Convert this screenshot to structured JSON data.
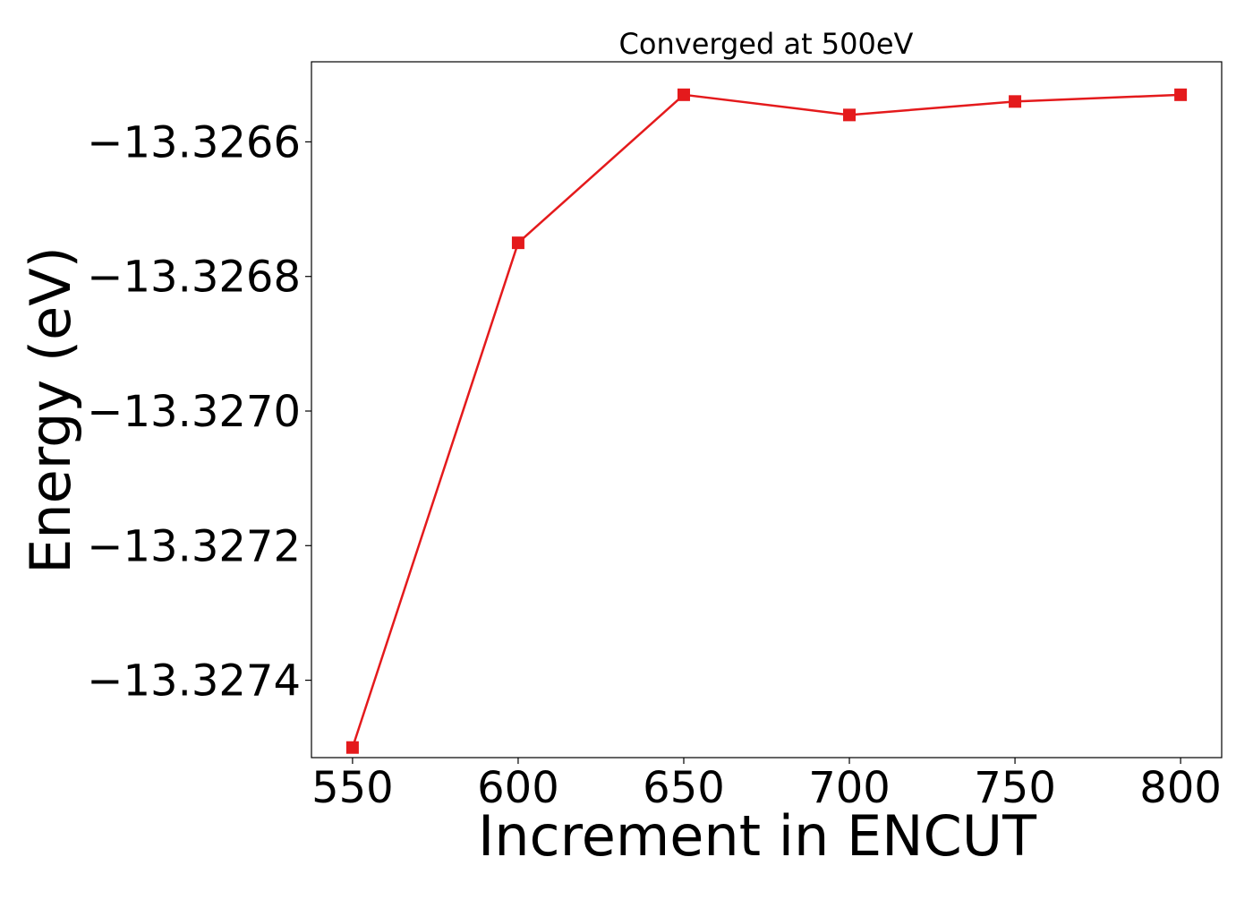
{
  "chart_data": {
    "type": "line",
    "title": "Converged at 500eV",
    "xlabel": "Increment in ENCUT",
    "ylabel": "Energy (eV)",
    "x": [
      550,
      600,
      650,
      700,
      750,
      800
    ],
    "series": [
      {
        "values": [
          -13.3275,
          -13.32675,
          -13.32653,
          -13.32656,
          -13.32654,
          -13.32653
        ],
        "color": "#e41a1c",
        "marker": "square"
      }
    ],
    "xticks": [
      550,
      600,
      650,
      700,
      750,
      800
    ],
    "xtick_labels": [
      "550",
      "600",
      "650",
      "700",
      "750",
      "800"
    ],
    "yticks": [
      -13.3274,
      -13.3272,
      -13.327,
      -13.3268,
      -13.3266
    ],
    "ytick_labels": [
      "−13.3274",
      "−13.3272",
      "−13.3270",
      "−13.3268",
      "−13.3266"
    ],
    "xlim": [
      537.6,
      812.4
    ],
    "ylim": [
      -13.327515,
      -13.326481
    ],
    "grid": false,
    "legend": "none"
  }
}
